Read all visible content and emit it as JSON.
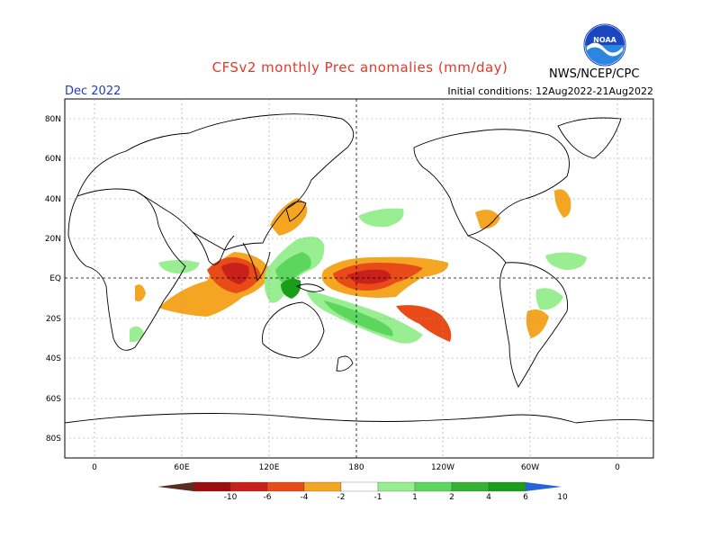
{
  "header": {
    "title": "CFSv2 monthly Prec anomalies (mm/day)",
    "month": "Dec 2022",
    "initial_conditions": "Initial conditions: 12Aug2022-21Aug2022",
    "organization": "NWS/NCEP/CPC",
    "logo_text": "NOAA"
  },
  "map": {
    "lat_labels": [
      "80N",
      "60N",
      "40N",
      "20N",
      "EQ",
      "20S",
      "40S",
      "60S",
      "80S"
    ],
    "lon_labels": [
      "0",
      "60E",
      "120E",
      "180",
      "120W",
      "60W",
      "0"
    ]
  },
  "colorbar": {
    "labels": [
      "-10",
      "-6",
      "-4",
      "-2",
      "-1",
      "1",
      "2",
      "4",
      "6",
      "10"
    ],
    "colors": [
      "#5a2d23",
      "#9b0d0d",
      "#c8201a",
      "#e84a18",
      "#f4a623",
      "#ffffff",
      "#98ee90",
      "#5cd65c",
      "#32b432",
      "#1a9e1a",
      "#2563d8"
    ]
  },
  "palette": {
    "dry_strong": "#c8201a",
    "dry_mid": "#e84a18",
    "dry_light": "#f4a623",
    "wet_light": "#98ee90",
    "wet_mid": "#5cd65c",
    "wet_strong": "#1a9e1a"
  }
}
